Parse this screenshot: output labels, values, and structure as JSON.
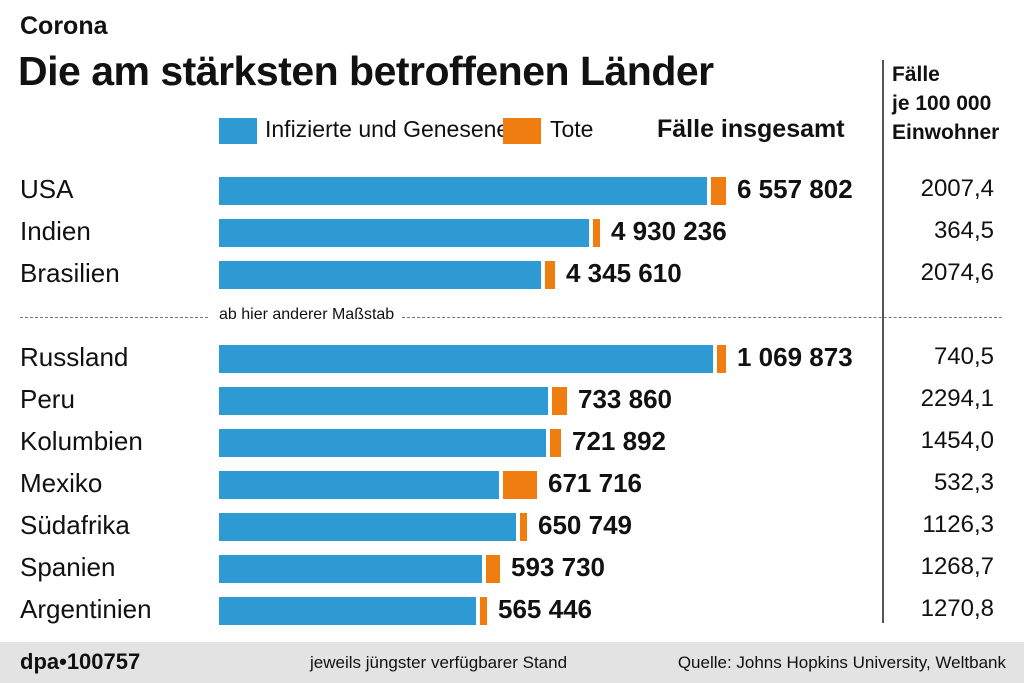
{
  "header": {
    "kicker": "Corona",
    "title": "Die am stärksten betroffenen Länder"
  },
  "legend": {
    "infected_label": "Infizierte und Genesene",
    "deaths_label": "Tote",
    "total_header": "Fälle insgesamt",
    "rate_header_line1": "Fälle",
    "rate_header_line2": "je 100 000",
    "rate_header_line3": "Einwohner"
  },
  "scale_note": "ab hier anderer Maßstab",
  "colors": {
    "infected": "#2e9ad3",
    "deaths": "#ef7d10",
    "footer_bg": "#e3e3e3",
    "divider": "#555555"
  },
  "chart_data": {
    "type": "bar",
    "title": "Die am stärksten betroffenen Länder",
    "series": [
      {
        "name": "Infizierte und Genesene"
      },
      {
        "name": "Tote"
      }
    ],
    "groups": [
      {
        "scale": "A",
        "rows": [
          {
            "country": "USA",
            "total": 6557802,
            "total_label": "6 557 802",
            "deaths_share": 0.03,
            "per_100k": "2007,4"
          },
          {
            "country": "Indien",
            "total": 4930236,
            "total_label": "4 930 236",
            "deaths_share": 0.017,
            "per_100k": "364,5"
          },
          {
            "country": "Brasilien",
            "total": 4345610,
            "total_label": "4 345 610",
            "deaths_share": 0.03,
            "per_100k": "2074,6"
          }
        ]
      },
      {
        "scale": "B",
        "rows": [
          {
            "country": "Russland",
            "total": 1069873,
            "total_label": "1 069 873",
            "deaths_share": 0.018,
            "per_100k": "740,5"
          },
          {
            "country": "Peru",
            "total": 733860,
            "total_label": "733 860",
            "deaths_share": 0.043,
            "per_100k": "2294,1"
          },
          {
            "country": "Kolumbien",
            "total": 721892,
            "total_label": "721 892",
            "deaths_share": 0.032,
            "per_100k": "1454,0"
          },
          {
            "country": "Mexiko",
            "total": 671716,
            "total_label": "671 716",
            "deaths_share": 0.107,
            "per_100k": "532,3"
          },
          {
            "country": "Südafrika",
            "total": 650749,
            "total_label": "650 749",
            "deaths_share": 0.024,
            "per_100k": "1126,3"
          },
          {
            "country": "Spanien",
            "total": 593730,
            "total_label": "593 730",
            "deaths_share": 0.05,
            "per_100k": "1268,7"
          },
          {
            "country": "Argentinien",
            "total": 565446,
            "total_label": "565 446",
            "deaths_share": 0.021,
            "per_100k": "1270,8"
          }
        ]
      }
    ]
  },
  "footer": {
    "agency": "dpa•100757",
    "stand": "jeweils jüngster verfügbarer Stand",
    "source": "Quelle: Johns Hopkins University, Weltbank"
  }
}
